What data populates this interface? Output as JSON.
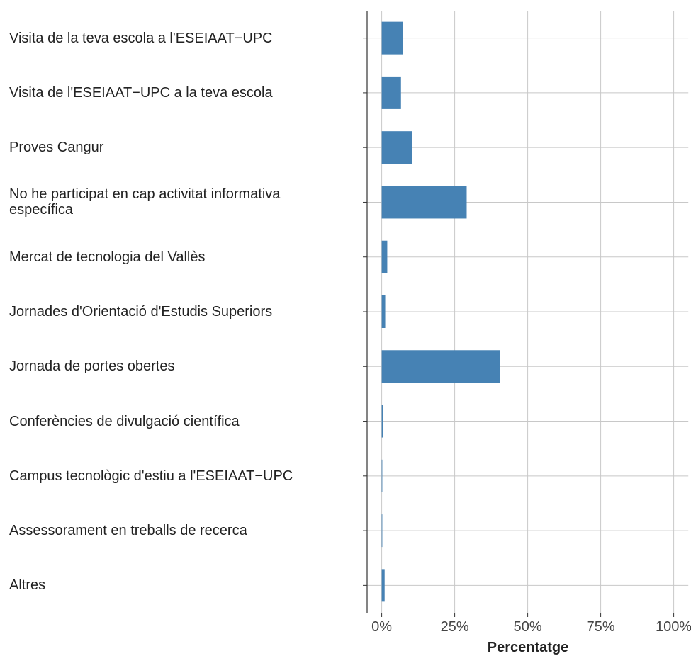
{
  "chart_data": {
    "type": "bar",
    "orientation": "horizontal",
    "categories": [
      "Visita de la teva escola a l'ESEIAAT−UPC",
      "Visita de l'ESEIAAT−UPC a la teva escola",
      "Proves Cangur",
      "No he participat en cap activitat informativa\nespecífica",
      "Mercat de tecnologia del Vallès",
      "Jornades d'Orientació d'Estudis Superiors",
      "Jornada de portes obertes",
      "Conferències de divulgació científica",
      "Campus tecnològic d'estiu a l'ESEIAAT−UPC",
      "Assessorament en treballs de recerca",
      "Altres"
    ],
    "values": [
      7.3,
      6.6,
      10.4,
      29.1,
      1.9,
      1.2,
      40.5,
      0.5,
      0.2,
      0.2,
      1.0
    ],
    "color": "#4682b4",
    "xlabel": "Percentatge",
    "xlim": [
      -5,
      105
    ],
    "xticks": [
      {
        "value": 0,
        "label": "0%"
      },
      {
        "value": 25,
        "label": "25%"
      },
      {
        "value": 50,
        "label": "50%"
      },
      {
        "value": 75,
        "label": "75%"
      },
      {
        "value": 100,
        "label": "100%"
      }
    ],
    "grid": true
  }
}
